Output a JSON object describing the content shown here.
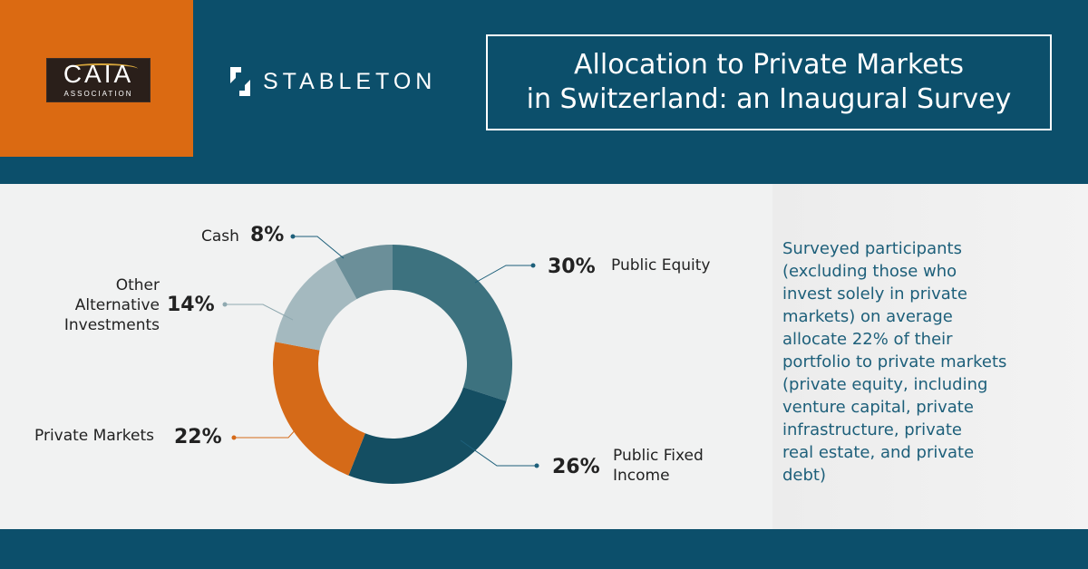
{
  "logos": {
    "caia_text": "CAIA",
    "caia_sub": "ASSOCIATION",
    "stableton_text": "STABLETON"
  },
  "title": {
    "line1": "Allocation to Private Markets",
    "line2": "in Switzerland: an Inaugural Survey"
  },
  "chart_data": {
    "type": "pie",
    "donut": true,
    "categories": [
      "Public Equity",
      "Public Fixed Income",
      "Private Markets",
      "Other Alternative Investments",
      "Cash"
    ],
    "values": [
      30,
      26,
      22,
      14,
      8
    ],
    "value_labels": [
      "30%",
      "26%",
      "22%",
      "14%",
      "8%"
    ],
    "colors": [
      "#3d727f",
      "#144e62",
      "#d56a18",
      "#a4b9bf",
      "#6b8f99"
    ],
    "start_angle_deg": 0,
    "direction": "clockwise",
    "legend": "none",
    "title": ""
  },
  "labels": {
    "public_equity": "Public Equity",
    "public_fixed_income_1": "Public Fixed",
    "public_fixed_income_2": "Income",
    "private_markets": "Private Markets",
    "other_alt_1": "Other",
    "other_alt_2": "Alternative",
    "other_alt_3": "Investments",
    "cash": "Cash"
  },
  "description": {
    "lines": [
      "Surveyed participants",
      "(excluding those who",
      "invest solely in private",
      "markets) on average",
      "allocate 22% of their",
      "portfolio to private markets",
      "(private equity, including",
      "venture capital, private",
      "infrastructure, private",
      "real estate, and private",
      "debt)"
    ]
  }
}
